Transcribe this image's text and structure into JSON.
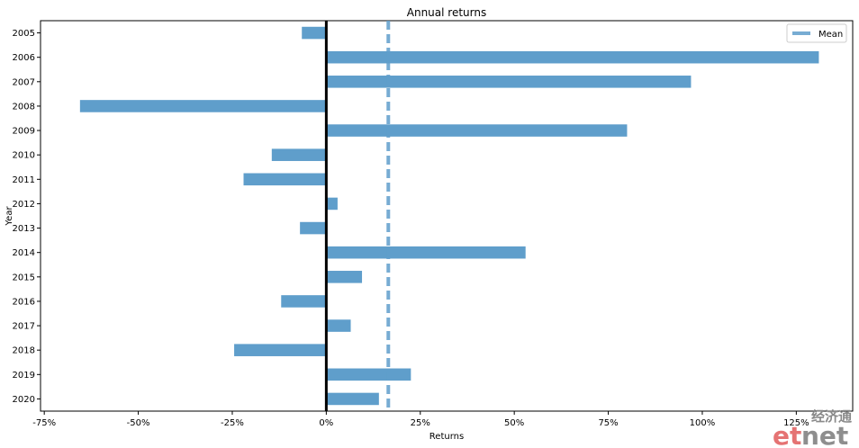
{
  "chart_data": {
    "type": "bar",
    "orientation": "horizontal",
    "title": "Annual returns",
    "xlabel": "Returns",
    "ylabel": "Year",
    "xlim": [
      -0.76,
      1.4
    ],
    "xticks": [
      -0.75,
      -0.5,
      -0.25,
      0,
      0.25,
      0.5,
      0.75,
      1.0,
      1.25
    ],
    "xtick_labels": [
      "-75%",
      "-50%",
      "-25%",
      "0%",
      "25%",
      "50%",
      "75%",
      "100%",
      "125%"
    ],
    "categories": [
      "2005",
      "2006",
      "2007",
      "2008",
      "2009",
      "2010",
      "2011",
      "2012",
      "2013",
      "2014",
      "2015",
      "2016",
      "2017",
      "2018",
      "2019",
      "2020"
    ],
    "values": [
      -0.065,
      1.31,
      0.97,
      -0.655,
      0.8,
      -0.145,
      -0.22,
      0.03,
      -0.07,
      0.53,
      0.095,
      -0.12,
      0.065,
      -0.245,
      0.225,
      0.14
    ],
    "mean": 0.165,
    "bar_color": "#5f9ecb",
    "zero_line_color": "#000000",
    "legend": {
      "entries": [
        "Mean"
      ],
      "placement": "upper-right"
    }
  },
  "watermark": {
    "text": "etnet",
    "chinese": "经济通"
  }
}
